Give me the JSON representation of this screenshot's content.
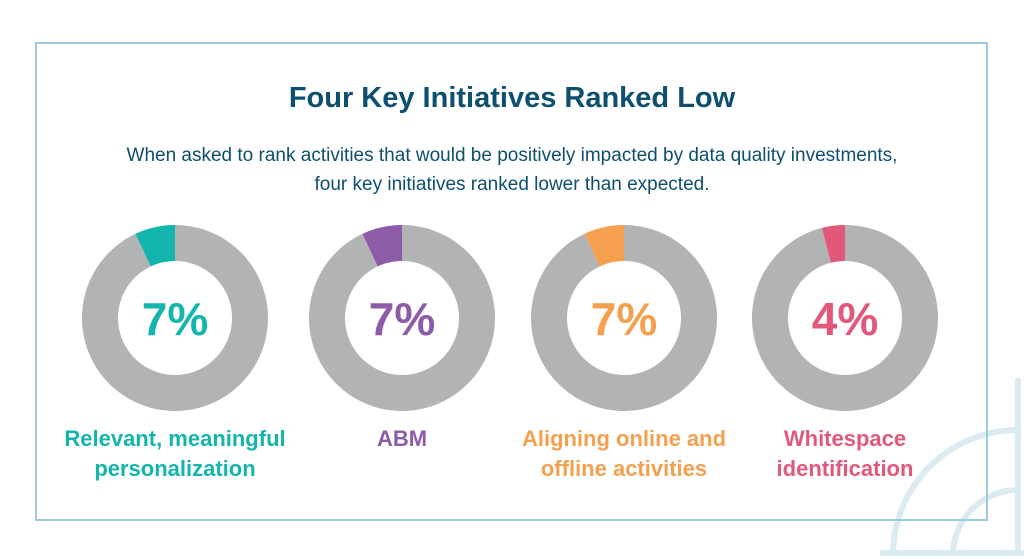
{
  "title": "Four Key Initiatives Ranked Low",
  "subtitle": {
    "line1": "When asked to rank activities that would be positively impacted by data quality investments,",
    "line2": "four key initiatives ranked lower than expected."
  },
  "colors": {
    "frame": "#9ccbe0",
    "title": "#0d4f6e",
    "remainder": "#b1b3b5",
    "decoration": "#dcebf2"
  },
  "chart_data": {
    "type": "pie",
    "title": "Four Key Initiatives Ranked Low",
    "charts": [
      {
        "label_line1": "Relevant, meaningful",
        "label_line2": "personalization",
        "value": 7,
        "value_label": "7%",
        "color": "#13b5ac"
      },
      {
        "label_line1": "ABM",
        "label_line2": "",
        "value": 7,
        "value_label": "7%",
        "color": "#8e5ba8"
      },
      {
        "label_line1": "Aligning online and",
        "label_line2": "offline activities",
        "value": 7,
        "value_label": "7%",
        "color": "#f4a04f"
      },
      {
        "label_line1": "Whitespace",
        "label_line2": "identification",
        "value": 4,
        "value_label": "4%",
        "color": "#e2587a"
      }
    ]
  }
}
